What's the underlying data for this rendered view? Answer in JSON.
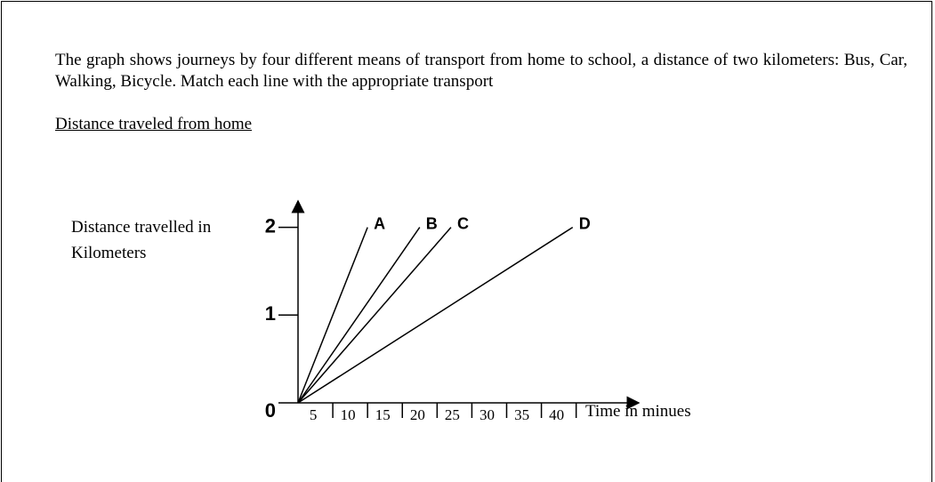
{
  "text": {
    "paragraph": "The graph shows journeys by four different means of transport from home to school, a distance of two kilometers: Bus, Car, Walking, Bicycle. Match each line with the appropriate transport",
    "caption": "Distance traveled from home"
  },
  "chart_data": {
    "type": "line",
    "y_label": "Distance travelled in Kilometers",
    "x_label": "Time in minues",
    "xlim": [
      0,
      49
    ],
    "ylim": [
      0,
      2.3
    ],
    "xticks": [
      5,
      10,
      15,
      20,
      25,
      30,
      35,
      40
    ],
    "yticks": [
      0,
      1,
      2
    ],
    "grid": false,
    "series": [
      {
        "name": "A",
        "color": "#000000",
        "x": [
          0,
          10
        ],
        "values": [
          0,
          2
        ]
      },
      {
        "name": "B",
        "color": "#000000",
        "x": [
          0,
          17.5
        ],
        "values": [
          0,
          2
        ]
      },
      {
        "name": "C",
        "color": "#000000",
        "x": [
          0,
          22
        ],
        "values": [
          0,
          2
        ]
      },
      {
        "name": "D",
        "color": "#000000",
        "x": [
          0,
          39.5
        ],
        "values": [
          0,
          2
        ]
      }
    ]
  }
}
